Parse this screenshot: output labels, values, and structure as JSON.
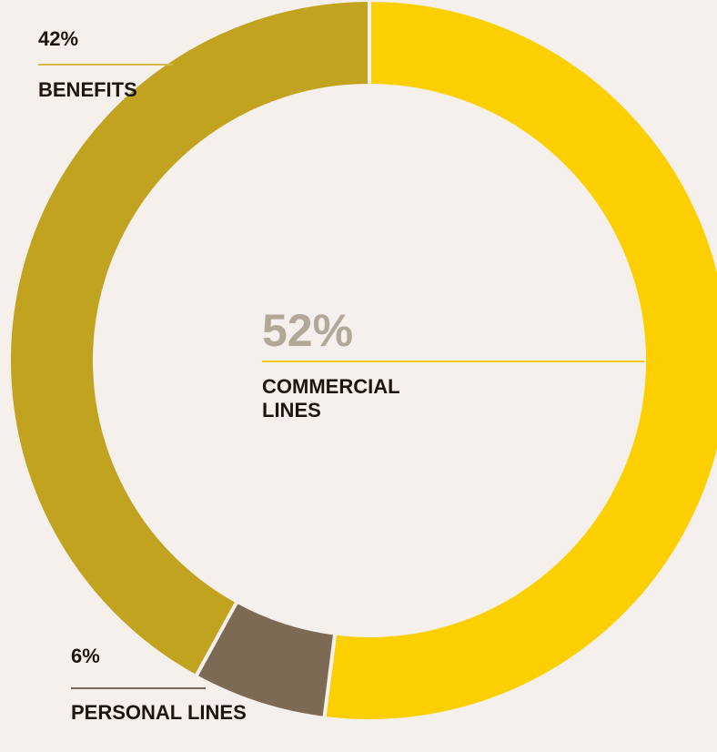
{
  "chart_data": {
    "type": "pie",
    "style": "donut",
    "title": "",
    "slices": [
      {
        "name": "COMMERCIAL LINES",
        "value": 52,
        "label": "52%",
        "color": "#fccf00"
      },
      {
        "name": "PERSONAL LINES",
        "value": 6,
        "label": "6%",
        "color": "#7d6a55"
      },
      {
        "name": "BENEFITS",
        "value": 42,
        "label": "42%",
        "color": "#c1a31f"
      }
    ],
    "start_angle_deg": 0,
    "direction": "clockwise",
    "background": "#f5f0ec",
    "separator_color": "#f5f0ec"
  }
}
